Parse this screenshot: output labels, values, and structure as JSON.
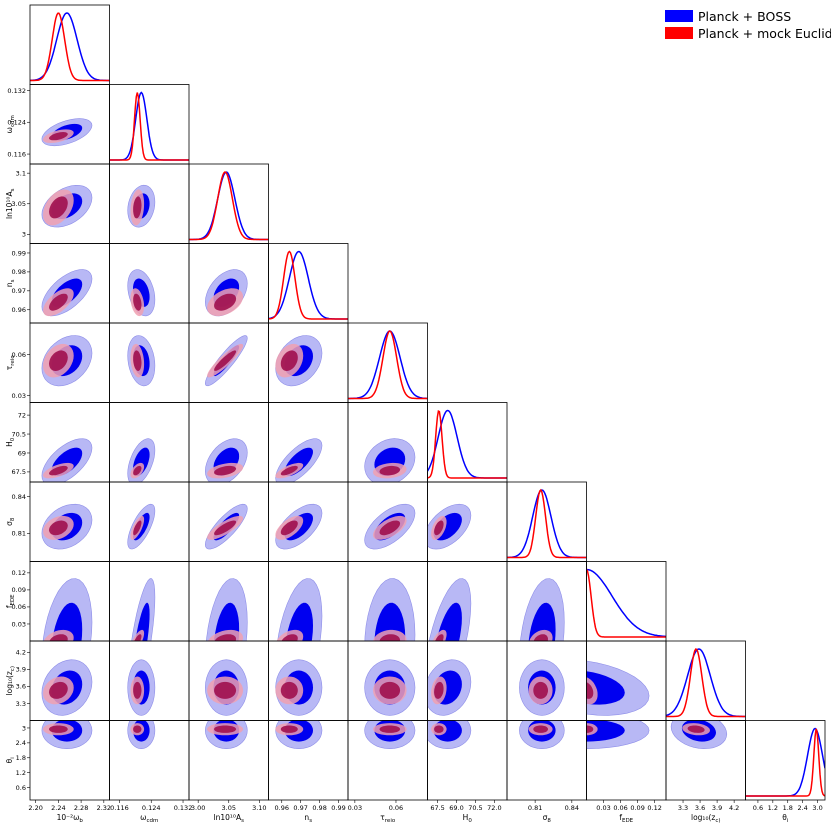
{
  "chart_data": {
    "type": "triangle",
    "title": "",
    "legend": {
      "placement": "top-right",
      "entries": [
        {
          "name": "Planck + BOSS",
          "color": "#0000ff"
        },
        {
          "name": "Planck + mock Euclid",
          "color": "#ff0000"
        }
      ]
    },
    "params": [
      {
        "key": "omega_b",
        "label": "10⁻²ω_b",
        "range": [
          2.19,
          2.33
        ],
        "xticks": [
          "2.20",
          "2.24",
          "2.28",
          "2.32"
        ],
        "xtickvals": [
          2.2,
          2.24,
          2.28,
          2.32
        ],
        "yticks": [],
        "ytickvals": [],
        "boss": {
          "mean": 2.255,
          "sigma": 0.018
        },
        "euclid": {
          "mean": 2.24,
          "sigma": 0.011
        }
      },
      {
        "key": "omega_cdm",
        "label": "ω_cdm",
        "range": [
          0.1135,
          0.1335
        ],
        "xticks": [
          "0.116",
          "0.124",
          "0.132"
        ],
        "xtickvals": [
          0.116,
          0.124,
          0.132
        ],
        "yticks": [
          "0.132",
          "0.124",
          "0.116"
        ],
        "ytickvals": [
          0.132,
          0.124,
          0.116
        ],
        "boss": {
          "mean": 0.1215,
          "sigma": 0.0014
        },
        "euclid": {
          "mean": 0.1205,
          "sigma": 0.0007
        }
      },
      {
        "key": "ln10As",
        "label": "ln10¹⁰A_s",
        "range": [
          2.985,
          3.115
        ],
        "xticks": [
          "3.00",
          "3.05",
          "3.10"
        ],
        "xtickvals": [
          3.0,
          3.05,
          3.1
        ],
        "yticks": [
          "3.1",
          "3.05",
          "3"
        ],
        "ytickvals": [
          3.1,
          3.05,
          3.0
        ],
        "boss": {
          "mean": 3.046,
          "sigma": 0.014
        },
        "euclid": {
          "mean": 3.044,
          "sigma": 0.012
        }
      },
      {
        "key": "n_s",
        "label": "n_s",
        "range": [
          0.953,
          0.995
        ],
        "xticks": [
          "0.96",
          "0.97",
          "0.98",
          "0.99"
        ],
        "xtickvals": [
          0.96,
          0.97,
          0.98,
          0.99
        ],
        "yticks": [
          "0.99",
          "0.98",
          "0.97",
          "0.96"
        ],
        "ytickvals": [
          0.99,
          0.98,
          0.97,
          0.96
        ],
        "boss": {
          "mean": 0.969,
          "sigma": 0.005
        },
        "euclid": {
          "mean": 0.964,
          "sigma": 0.003
        }
      },
      {
        "key": "tau_reio",
        "label": "τ_reio",
        "range": [
          0.025,
          0.083
        ],
        "xticks": [
          "0.03",
          "0.06"
        ],
        "xtickvals": [
          0.03,
          0.06
        ],
        "yticks": [
          "0.06",
          "0.03"
        ],
        "ytickvals": [
          0.06,
          0.03
        ],
        "boss": {
          "mean": 0.0555,
          "sigma": 0.0075
        },
        "euclid": {
          "mean": 0.0555,
          "sigma": 0.005
        }
      },
      {
        "key": "H0",
        "label": "H_0",
        "range": [
          66.7,
          73.0
        ],
        "xticks": [
          "67.5",
          "69.0",
          "70.5",
          "72.0"
        ],
        "xtickvals": [
          67.5,
          69.0,
          70.5,
          72.0
        ],
        "yticks": [
          "72",
          "70.5",
          "69",
          "67.5"
        ],
        "ytickvals": [
          72,
          70.5,
          69,
          67.5
        ],
        "boss": {
          "mean": 68.3,
          "sigma": 0.75
        },
        "euclid": {
          "mean": 67.6,
          "sigma": 0.25
        }
      },
      {
        "key": "sigma8",
        "label": "σ_8",
        "range": [
          0.787,
          0.852
        ],
        "xticks": [
          "0.81",
          "0.84"
        ],
        "xtickvals": [
          0.81,
          0.84
        ],
        "yticks": [
          "0.84",
          "0.81"
        ],
        "ytickvals": [
          0.84,
          0.81
        ],
        "boss": {
          "mean": 0.8155,
          "sigma": 0.0075
        },
        "euclid": {
          "mean": 0.8145,
          "sigma": 0.004
        }
      },
      {
        "key": "f_EDE",
        "label": "f_EDE",
        "range": [
          0.0,
          0.14
        ],
        "xticks": [
          "0.03",
          "0.06",
          "0.09",
          "0.12"
        ],
        "xtickvals": [
          0.03,
          0.06,
          0.09,
          0.12
        ],
        "yticks": [
          "0.12",
          "0.09",
          "0.06",
          "0.03"
        ],
        "ytickvals": [
          0.12,
          0.09,
          0.06,
          0.03
        ],
        "boss": {
          "mean": 0.0,
          "sigma": 0.045
        },
        "euclid": {
          "mean": 0.0,
          "sigma": 0.008
        }
      },
      {
        "key": "log10zc",
        "label": "log₁₀(z_c)",
        "range": [
          3.0,
          4.4
        ],
        "xticks": [
          "3.3",
          "3.6",
          "3.9",
          "4.2"
        ],
        "xtickvals": [
          3.3,
          3.6,
          3.9,
          4.2
        ],
        "yticks": [
          "4.2",
          "3.9",
          "3.6",
          "3.3"
        ],
        "ytickvals": [
          4.2,
          3.9,
          3.6,
          3.3
        ],
        "boss": {
          "mean": 3.58,
          "sigma": 0.2
        },
        "euclid": {
          "mean": 3.53,
          "sigma": 0.1
        }
      },
      {
        "key": "theta_i",
        "label": "θ_i",
        "range": [
          0.1,
          3.3
        ],
        "xticks": [
          "0.6",
          "1.2",
          "1.8",
          "2.4",
          "3.0"
        ],
        "xtickvals": [
          0.6,
          1.2,
          1.8,
          2.4,
          3.0
        ],
        "yticks": [
          "3",
          "2.4",
          "1.8",
          "1.2",
          "0.6"
        ],
        "ytickvals": [
          3.0,
          2.4,
          1.8,
          1.2,
          0.6
        ],
        "boss": {
          "mean": 2.9,
          "sigma": 0.3
        },
        "euclid": {
          "mean": 2.95,
          "sigma": 0.1
        }
      }
    ],
    "colors": {
      "boss_line": "#0000ff",
      "euclid_line": "#ff0000",
      "boss_fill_outer": "#b8b8f5",
      "boss_fill_inner": "#0000f0",
      "euclid_fill_outer": "#f0a0b0",
      "euclid_fill_inner": "#a0104e"
    },
    "grid": false
  }
}
